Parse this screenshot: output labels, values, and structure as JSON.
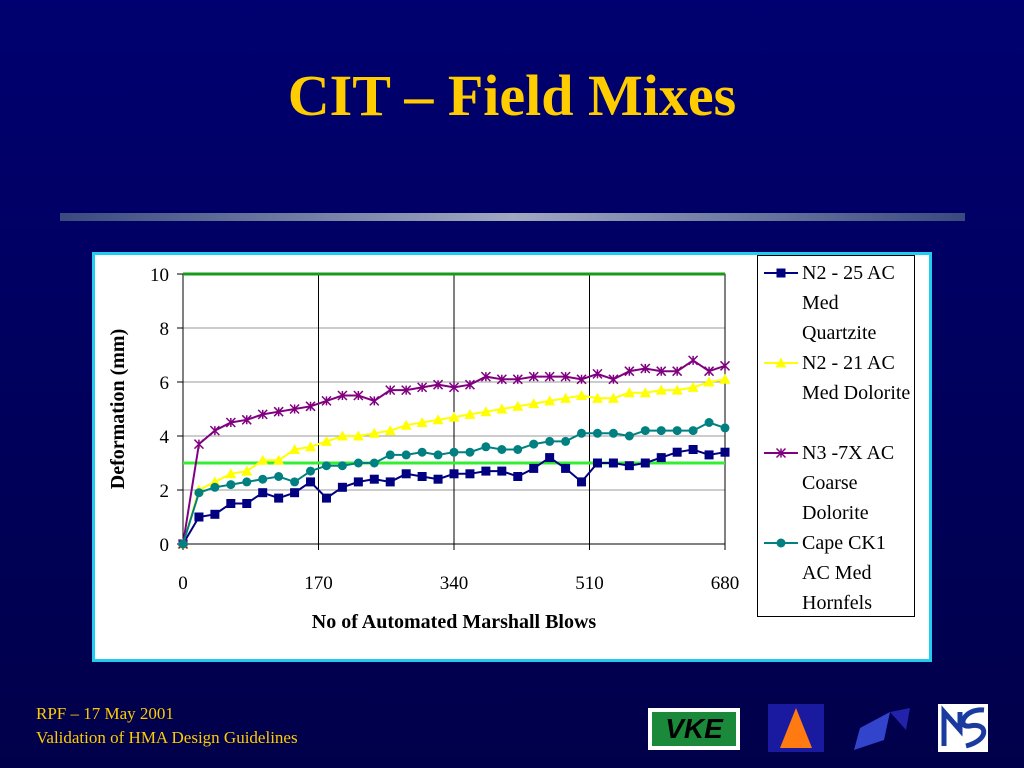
{
  "header": {
    "title": "CIT – Field Mixes"
  },
  "chart_data": {
    "type": "line",
    "x_label": "No of Automated Marshall Blows",
    "y_label": "Deformation (mm)",
    "x": [
      0,
      20,
      40,
      60,
      80,
      100,
      120,
      140,
      160,
      180,
      200,
      220,
      240,
      260,
      280,
      300,
      320,
      340,
      360,
      380,
      400,
      420,
      440,
      460,
      480,
      500,
      520,
      540,
      560,
      580,
      600,
      620,
      640,
      660,
      680
    ],
    "xlim": [
      0,
      680
    ],
    "xticks": [
      0,
      170,
      340,
      510,
      680
    ],
    "ylim": [
      0,
      10
    ],
    "yticks": [
      0,
      2,
      4,
      6,
      8,
      10
    ],
    "grid": true,
    "legend": "right",
    "reference_lines": [
      {
        "value": 10,
        "color": "#1a9a1a"
      },
      {
        "value": 3,
        "color": "#33ee33"
      }
    ],
    "series": [
      {
        "name": "N2 - 25 AC Med Quartzite",
        "color": "#000080",
        "marker": "square",
        "values": [
          0,
          1.0,
          1.1,
          1.5,
          1.5,
          1.9,
          1.7,
          1.9,
          2.3,
          1.7,
          2.1,
          2.3,
          2.4,
          2.3,
          2.6,
          2.5,
          2.4,
          2.6,
          2.6,
          2.7,
          2.7,
          2.5,
          2.8,
          3.2,
          2.8,
          2.3,
          3.0,
          3.0,
          2.9,
          3.0,
          3.2,
          3.4,
          3.5,
          3.3,
          3.4
        ]
      },
      {
        "name": "N2 - 21 AC Med Dolorite",
        "color": "#ffff00",
        "marker": "triangle",
        "values": [
          0,
          2.0,
          2.3,
          2.6,
          2.7,
          3.1,
          3.1,
          3.5,
          3.6,
          3.8,
          4.0,
          4.0,
          4.1,
          4.2,
          4.4,
          4.5,
          4.6,
          4.7,
          4.8,
          4.9,
          5.0,
          5.1,
          5.2,
          5.3,
          5.4,
          5.5,
          5.4,
          5.4,
          5.6,
          5.6,
          5.7,
          5.7,
          5.8,
          6.0,
          6.1
        ]
      },
      {
        "name": "N3 -7X AC Coarse Dolorite",
        "color": "#800080",
        "marker": "x",
        "values": [
          0,
          3.7,
          4.2,
          4.5,
          4.6,
          4.8,
          4.9,
          5.0,
          5.1,
          5.3,
          5.5,
          5.5,
          5.3,
          5.7,
          5.7,
          5.8,
          5.9,
          5.8,
          5.9,
          6.2,
          6.1,
          6.1,
          6.2,
          6.2,
          6.2,
          6.1,
          6.3,
          6.1,
          6.4,
          6.5,
          6.4,
          6.4,
          6.8,
          6.4,
          6.6
        ]
      },
      {
        "name": "Cape CK1 AC Med Hornfels",
        "color": "#008080",
        "marker": "circle",
        "values": [
          0,
          1.9,
          2.1,
          2.2,
          2.3,
          2.4,
          2.5,
          2.3,
          2.7,
          2.9,
          2.9,
          3.0,
          3.0,
          3.3,
          3.3,
          3.4,
          3.3,
          3.4,
          3.4,
          3.6,
          3.5,
          3.5,
          3.7,
          3.8,
          3.8,
          4.1,
          4.1,
          4.1,
          4.0,
          4.2,
          4.2,
          4.2,
          4.2,
          4.5,
          4.3
        ]
      }
    ]
  },
  "footer": {
    "lines": [
      "RPF – 17 May 2001",
      "Validation of HMA Design Guidelines"
    ],
    "logo_text": "VKE"
  }
}
